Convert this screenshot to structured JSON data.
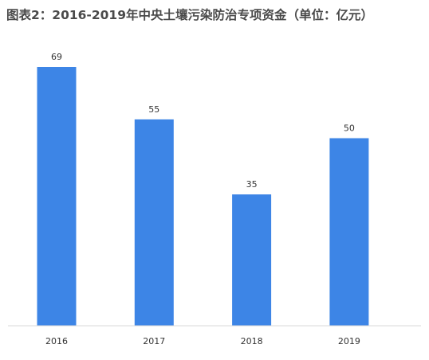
{
  "title": "图表2：2016-2019年中央土壤污染防治专项资金（单位：亿元）",
  "colors": {
    "bar": "#3d85e6",
    "axis": "#d9d9d9",
    "text": "#333333"
  },
  "chart_data": {
    "type": "bar",
    "title": "图表2：2016-2019年中央土壤污染防治专项资金（单位：亿元）",
    "categories": [
      "2016",
      "2017",
      "2018",
      "2019"
    ],
    "values": [
      69,
      55,
      35,
      50
    ],
    "xlabel": "",
    "ylabel": "",
    "ylim": [
      0,
      80
    ],
    "grid": false,
    "legend": "none",
    "data_labels": true
  }
}
